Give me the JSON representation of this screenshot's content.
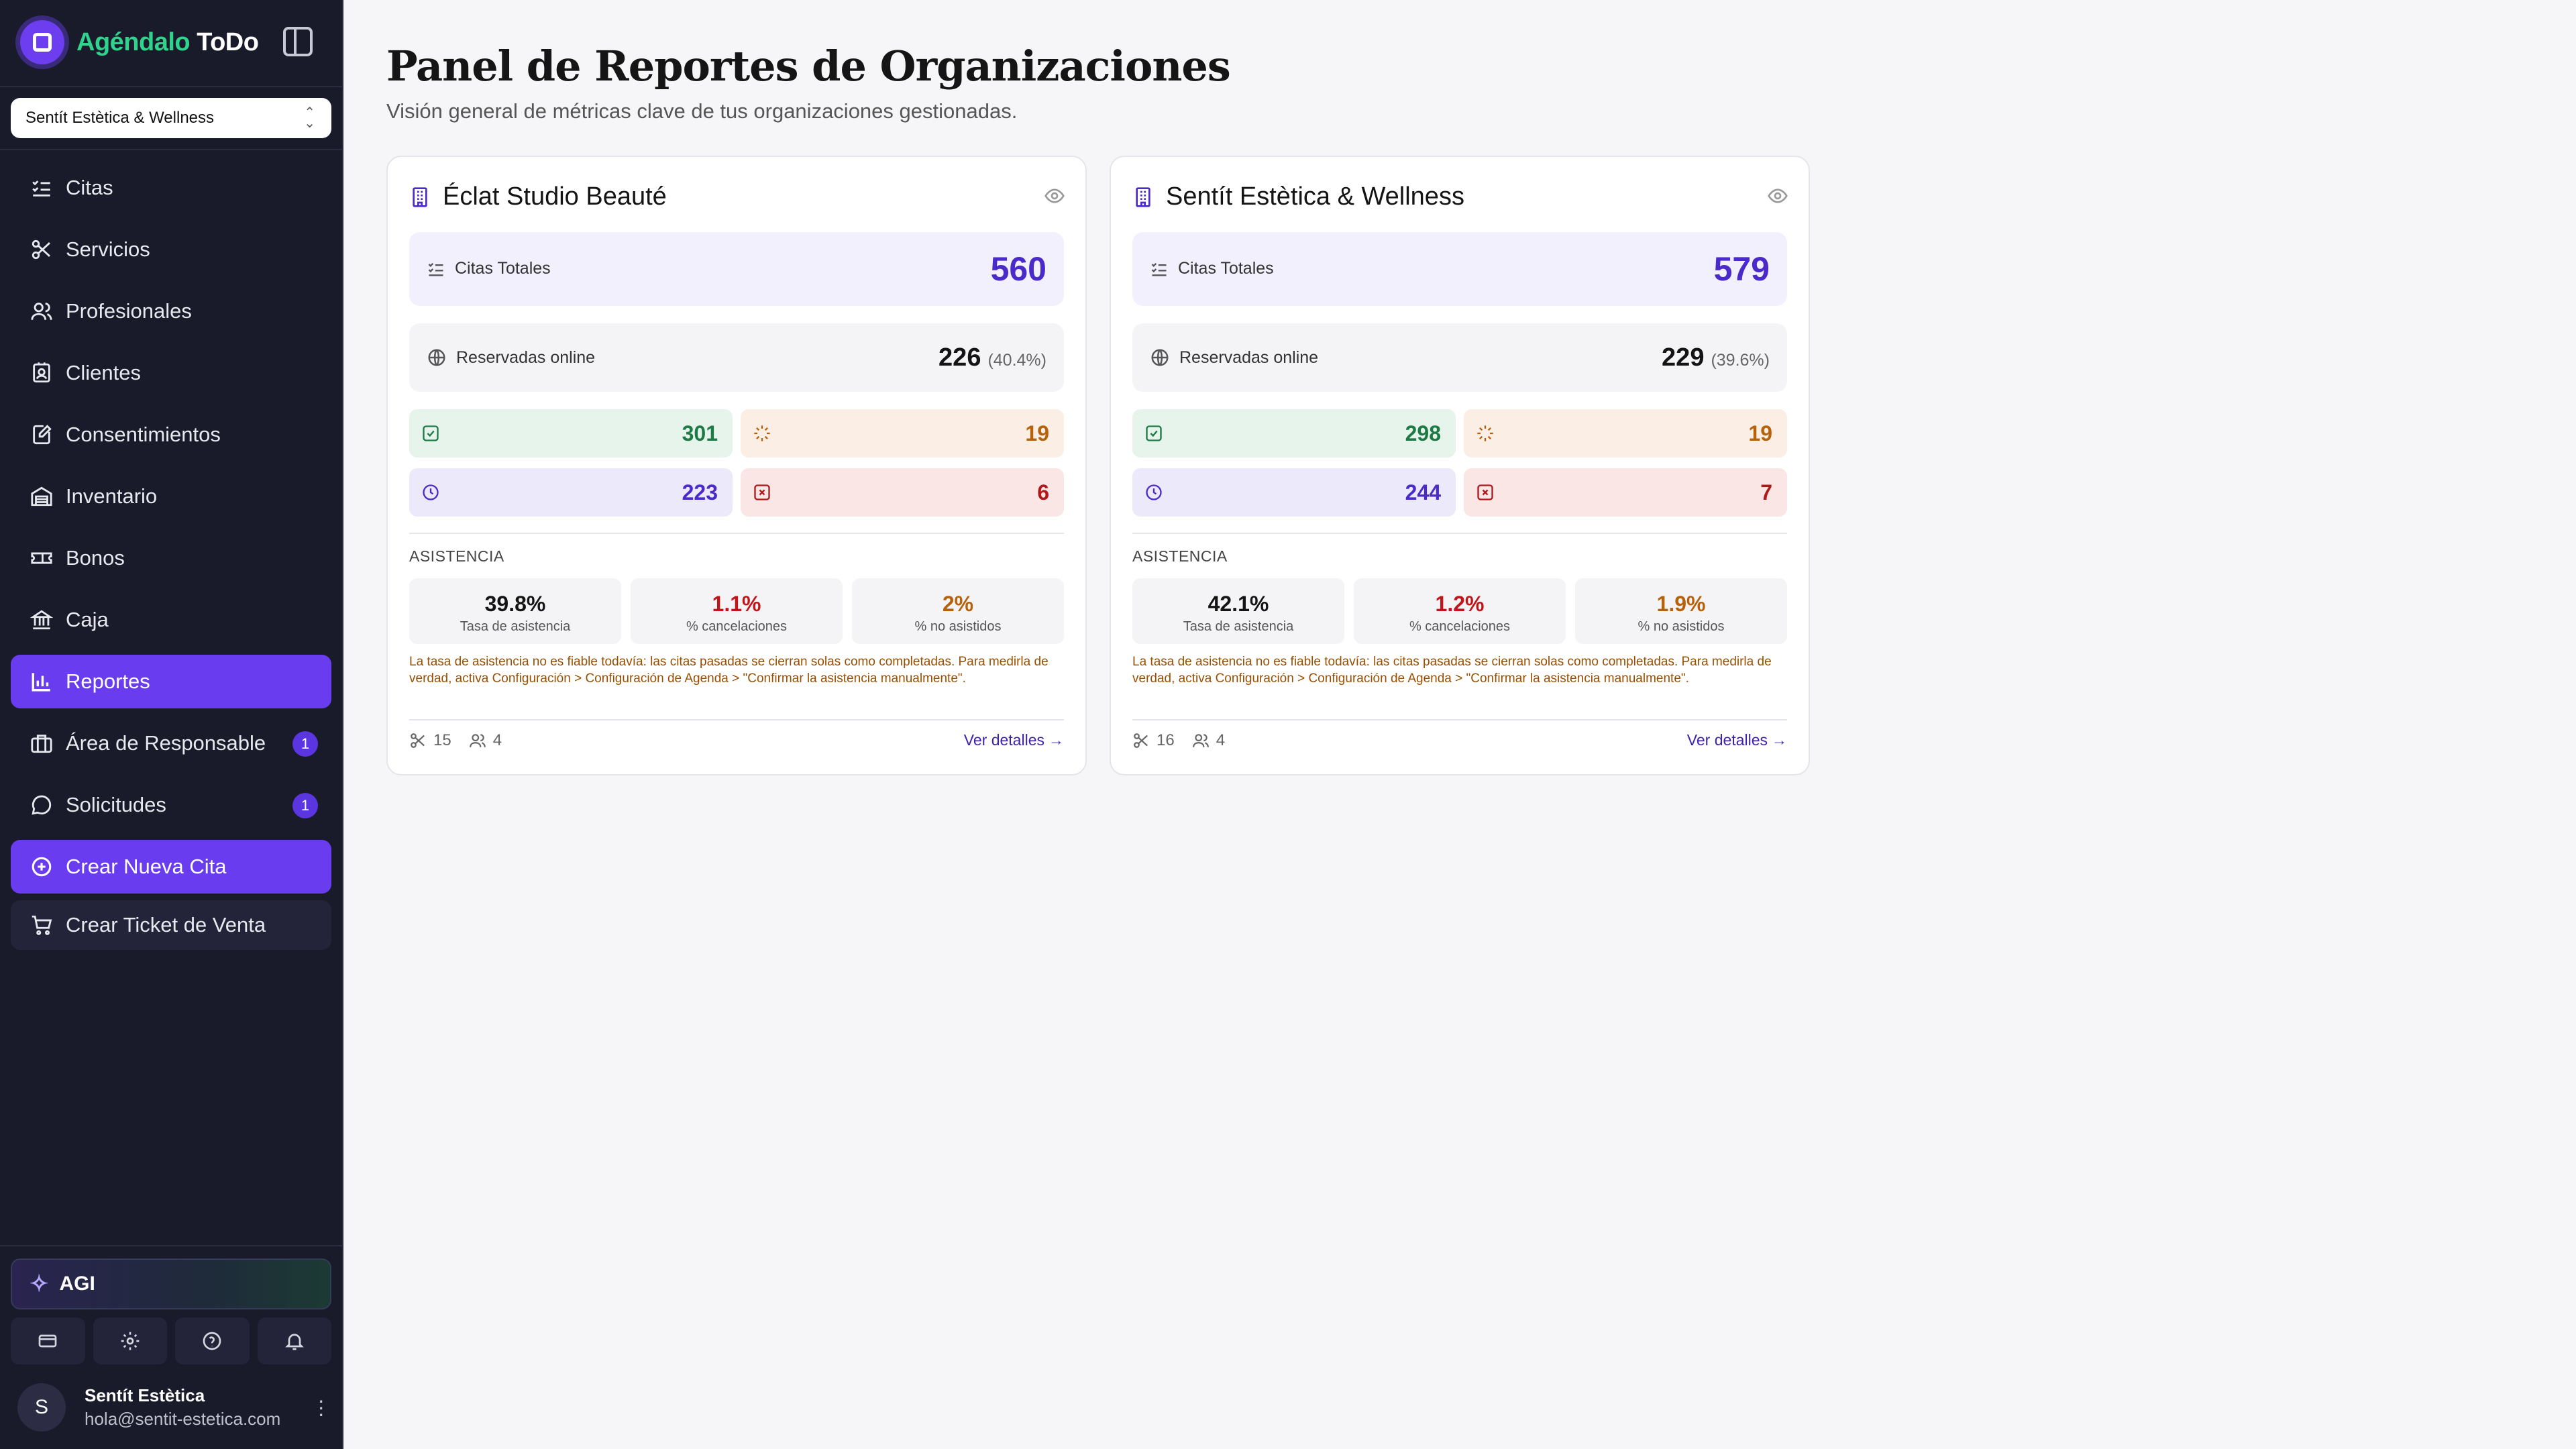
{
  "brand": {
    "name_a": "Agéndalo",
    "name_b": "ToDo"
  },
  "org_selector": {
    "value": "Sentít Estètica & Wellness"
  },
  "nav": {
    "items": [
      {
        "label": "Citas"
      },
      {
        "label": "Servicios"
      },
      {
        "label": "Profesionales"
      },
      {
        "label": "Clientes"
      },
      {
        "label": "Consentimientos"
      },
      {
        "label": "Inventario"
      },
      {
        "label": "Bonos"
      },
      {
        "label": "Caja"
      },
      {
        "label": "Reportes"
      },
      {
        "label": "Área de Responsable",
        "badge": "1"
      },
      {
        "label": "Solicitudes",
        "badge": "1"
      }
    ],
    "create_appointment": "Crear Nueva Cita",
    "create_ticket": "Crear Ticket de Venta"
  },
  "agi": {
    "label": "AGI"
  },
  "user": {
    "initial": "S",
    "name": "Sentít Estètica",
    "email": "hola@sentit-estetica.com"
  },
  "page": {
    "title": "Panel de Reportes de Organizaciones",
    "subtitle": "Visión general de métricas clave de tus organizaciones gestionadas."
  },
  "labels": {
    "total": "Citas Totales",
    "online": "Reservadas online",
    "attendance": "ASISTENCIA",
    "rate": "Tasa de asistencia",
    "cancel": "% cancelaciones",
    "noshow": "% no asistidos",
    "warning": "La tasa de asistencia no es fiable todavía: las citas pasadas se cierran solas como completadas. Para medirla de verdad, activa Configuración > Configuración de Agenda > \"Confirmar la asistencia manualmente\".",
    "details": "Ver detalles"
  },
  "orgs": [
    {
      "name": "Éclat Studio Beauté",
      "total": "560",
      "online": "226",
      "online_pct": "(40.4%)",
      "completed": "301",
      "pending": "19",
      "scheduled": "223",
      "cancelled": "6",
      "rate": "39.8%",
      "cancel_pct": "1.1%",
      "noshow_pct": "2%",
      "services": "15",
      "staff": "4"
    },
    {
      "name": "Sentít Estètica & Wellness",
      "total": "579",
      "online": "229",
      "online_pct": "(39.6%)",
      "completed": "298",
      "pending": "19",
      "scheduled": "244",
      "cancelled": "7",
      "rate": "42.1%",
      "cancel_pct": "1.2%",
      "noshow_pct": "1.9%",
      "services": "16",
      "staff": "4"
    }
  ],
  "colors": {
    "accent": "#6a3cf0",
    "sidebar_bg": "#191a2a",
    "brand_green": "#2fd38d"
  }
}
